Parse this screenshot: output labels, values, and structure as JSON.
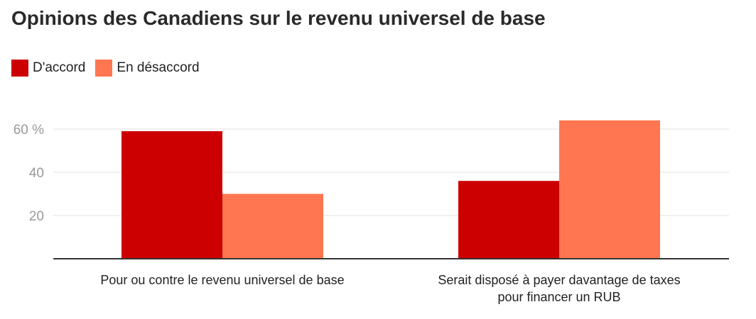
{
  "title": "Opinions des Canadiens sur le revenu universel de base",
  "colors": {
    "accord": "#cc0000",
    "desaccord": "#ff7650",
    "grid": "#e2e2e2",
    "axis": "#333333"
  },
  "chart_data": {
    "type": "bar",
    "title": "Opinions des Canadiens sur le revenu universel de base",
    "categories": [
      [
        "Pour ou contre le revenu universel de base"
      ],
      [
        "Serait disposé à payer davantage de taxes",
        "pour financer un RUB"
      ]
    ],
    "series": [
      {
        "name": "D'accord",
        "values": [
          59,
          36
        ],
        "color": "#cc0000"
      },
      {
        "name": "En désaccord",
        "values": [
          30,
          64
        ],
        "color": "#ff7650"
      }
    ],
    "yticks": [
      {
        "value": 20,
        "label": "20"
      },
      {
        "value": 40,
        "label": "40"
      },
      {
        "value": 60,
        "label": "60 %"
      }
    ],
    "ylim": [
      0,
      70
    ],
    "grid": true,
    "legend": "top-left"
  }
}
